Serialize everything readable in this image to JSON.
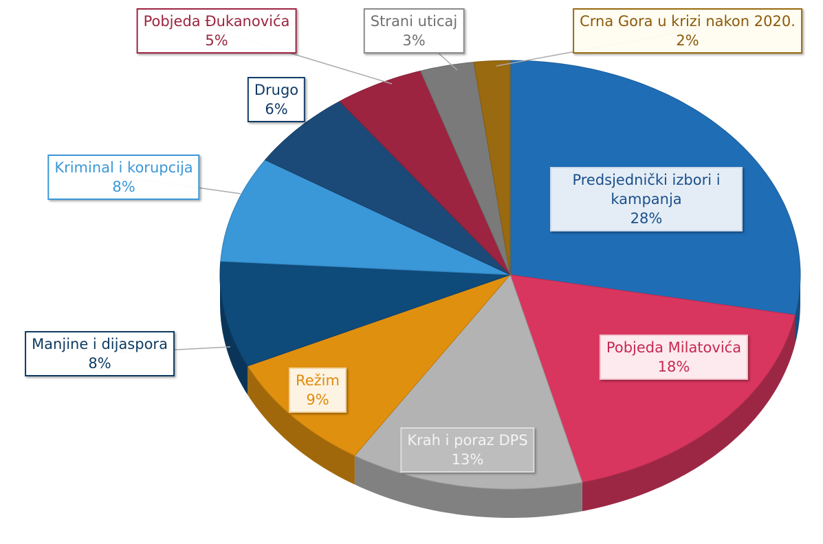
{
  "chart_data": {
    "type": "pie",
    "categories": [
      "Predsjednički izbori i kampanja",
      "Pobjeda Milatovića",
      "Krah i poraz DPS",
      "Režim",
      "Manjine i dijaspora",
      "Kriminal i korupcija",
      "Drugo",
      "Pobjeda Đukanovića",
      "Strani uticaj",
      "Crna Gora u krizi nakon 2020."
    ],
    "values": [
      28,
      18,
      13,
      9,
      8,
      8,
      6,
      5,
      3,
      2
    ],
    "value_labels": [
      "28%",
      "18%",
      "13%",
      "9%",
      "8%",
      "8%",
      "6%",
      "5%",
      "3%",
      "2%"
    ],
    "colors": [
      "#1f6db5",
      "#d9365f",
      "#b3b3b3",
      "#e0900f",
      "#0e4a7a",
      "#3a97d8",
      "#1c4a78",
      "#9c2440",
      "#7a7a7a",
      "#9a6a10"
    ]
  }
}
